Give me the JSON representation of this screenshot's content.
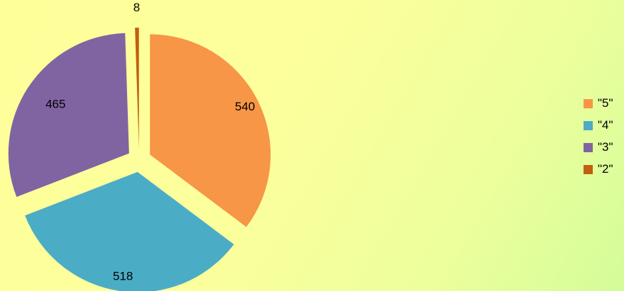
{
  "chart_data": {
    "type": "pie",
    "title": "",
    "exploded": true,
    "start": "12 o'clock",
    "direction": "clockwise",
    "slices": [
      {
        "label": "\"5\"",
        "value": 540,
        "color": "#f79646"
      },
      {
        "label": "\"4\"",
        "value": 518,
        "color": "#4bacc6"
      },
      {
        "label": "\"3\"",
        "value": 465,
        "color": "#8064a2"
      },
      {
        "label": "\"2\"",
        "value": 8,
        "color": "#c0600f"
      }
    ],
    "legend_position": "right",
    "background": "#ffff99"
  }
}
